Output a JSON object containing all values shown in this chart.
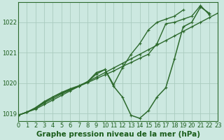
{
  "title": "Graphe pression niveau de la mer (hPa)",
  "x_hours": [
    0,
    1,
    2,
    3,
    4,
    5,
    6,
    7,
    8,
    9,
    10,
    11,
    12,
    13,
    14,
    15,
    16,
    17,
    18,
    19,
    20,
    21,
    22,
    23
  ],
  "lines": [
    {
      "y": [
        1018.95,
        1019.05,
        1019.15,
        1019.3,
        1019.45,
        1019.6,
        1019.75,
        1019.9,
        1020.05,
        1020.2,
        1020.35,
        1020.5,
        1020.65,
        1020.8,
        1020.95,
        1021.1,
        1021.25,
        1021.4,
        1021.55,
        1021.7,
        1021.85,
        1022.0,
        1022.15,
        1022.3
      ],
      "color": "#2d6a2d",
      "lw": 1.0,
      "marker": "+"
    },
    {
      "y": [
        1018.95,
        1019.05,
        1019.18,
        1019.35,
        1019.5,
        1019.65,
        1019.78,
        1019.9,
        1020.02,
        1020.15,
        1020.28,
        1020.4,
        1020.55,
        1020.68,
        1020.82,
        1020.95,
        1021.3,
        1021.95,
        1022.0,
        1022.1,
        1022.2,
        1022.55,
        1022.25,
        null
      ],
      "color": "#2d6a2d",
      "lw": 1.0,
      "marker": "+"
    },
    {
      "y": [
        1018.95,
        1019.05,
        1019.2,
        1019.4,
        1019.55,
        1019.7,
        1019.82,
        1019.92,
        1020.05,
        1020.35,
        1020.45,
        1019.95,
        1020.5,
        1020.95,
        1021.3,
        1021.75,
        1022.0,
        1022.1,
        1022.2,
        1022.4,
        null,
        null,
        null,
        null
      ],
      "color": "#2d6a2d",
      "lw": 1.0,
      "marker": "+"
    },
    {
      "y": [
        1018.95,
        1019.05,
        1019.18,
        1019.38,
        1019.55,
        1019.68,
        1019.8,
        1019.9,
        1020.05,
        1020.3,
        1020.45,
        1019.9,
        1019.55,
        1018.95,
        1018.85,
        1019.1,
        1019.55,
        1019.85,
        1020.8,
        1021.85,
        1022.0,
        1022.5,
        1022.3,
        null
      ],
      "color": "#2d6a2d",
      "lw": 1.1,
      "marker": "+"
    }
  ],
  "xlim": [
    0,
    23
  ],
  "ylim": [
    1018.75,
    1022.65
  ],
  "yticks": [
    1019,
    1020,
    1021,
    1022
  ],
  "xticks": [
    0,
    1,
    2,
    3,
    4,
    5,
    6,
    7,
    8,
    9,
    10,
    11,
    12,
    13,
    14,
    15,
    16,
    17,
    18,
    19,
    20,
    21,
    22,
    23
  ],
  "bg_color": "#cce8e0",
  "grid_color": "#aaccbf",
  "text_color": "#1a5c1a",
  "line_color": "#2d6a2d",
  "title_fontsize": 7.5,
  "tick_fontsize": 6.0
}
